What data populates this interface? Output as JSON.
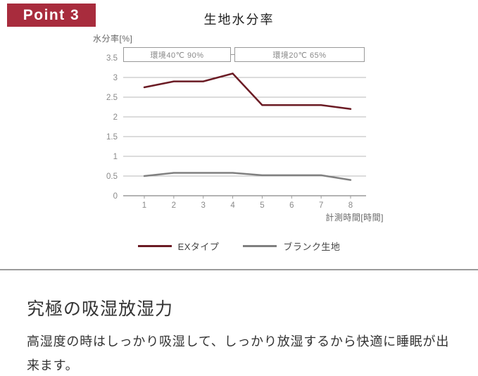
{
  "badge": {
    "label": "Point 3",
    "bg_color": "#a82c3d"
  },
  "chart": {
    "title": "生地水分率",
    "y_axis_caption": "水分率[%]",
    "x_axis_caption": "計測時間[時間]"
  },
  "chart_data": {
    "type": "line",
    "title": "生地水分率",
    "xlabel": "計測時間[時間]",
    "ylabel": "水分率[%]",
    "x": [
      1,
      2,
      3,
      4,
      5,
      6,
      7,
      8
    ],
    "x_tick_labels": [
      "1",
      "2",
      "3",
      "4",
      "5",
      "6",
      "7",
      "8"
    ],
    "y_ticks": [
      0,
      0.5,
      1,
      1.5,
      2,
      2.5,
      3,
      3.5
    ],
    "y_tick_labels": [
      "0",
      "0.5",
      "1",
      "1.5",
      "2",
      "2.5",
      "3",
      "3.5"
    ],
    "ylim": [
      0,
      3.5
    ],
    "grid": true,
    "legend_position": "bottom",
    "annotations": [
      "環境40℃ 90%",
      "環境20℃ 65%"
    ],
    "annotation_x_ranges": [
      [
        1,
        4
      ],
      [
        4,
        8
      ]
    ],
    "series": [
      {
        "name": "EXタイプ",
        "color": "#6b1b24",
        "values": [
          2.75,
          2.9,
          2.9,
          3.1,
          2.3,
          2.3,
          2.3,
          2.2
        ]
      },
      {
        "name": "ブランク生地",
        "color": "#808080",
        "values": [
          0.5,
          0.58,
          0.58,
          0.58,
          0.52,
          0.52,
          0.52,
          0.4
        ]
      }
    ],
    "colors": {
      "grid_line": "#b8b8b8",
      "axis_line": "#9a9a9a",
      "tick_label": "#8a8a8a"
    }
  },
  "section": {
    "heading": "究極の吸湿放湿力",
    "body": "高湿度の時はしっかり吸湿して、しっかり放湿するから快適に睡眠が出来ます。"
  }
}
